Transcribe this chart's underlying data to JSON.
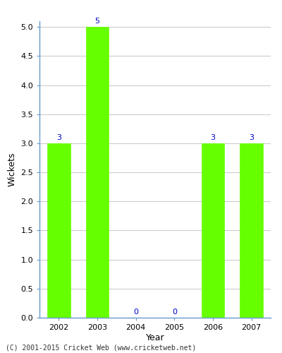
{
  "categories": [
    "2002",
    "2003",
    "2004",
    "2005",
    "2006",
    "2007"
  ],
  "values": [
    3,
    5,
    0,
    0,
    3,
    3
  ],
  "bar_color": "#66ff00",
  "bar_edge_color": "#66ff00",
  "label_color": "#0000cc",
  "xlabel": "Year",
  "ylabel": "Wickets",
  "ylim": [
    0,
    5.1
  ],
  "yticks": [
    0.0,
    0.5,
    1.0,
    1.5,
    2.0,
    2.5,
    3.0,
    3.5,
    4.0,
    4.5,
    5.0
  ],
  "grid_color": "#cccccc",
  "spine_color": "#6699cc",
  "background_color": "#ffffff",
  "footer": "(C) 2001-2015 Cricket Web (www.cricketweb.net)",
  "label_fontsize": 8,
  "axis_label_fontsize": 9,
  "tick_fontsize": 8,
  "bar_width": 0.6
}
